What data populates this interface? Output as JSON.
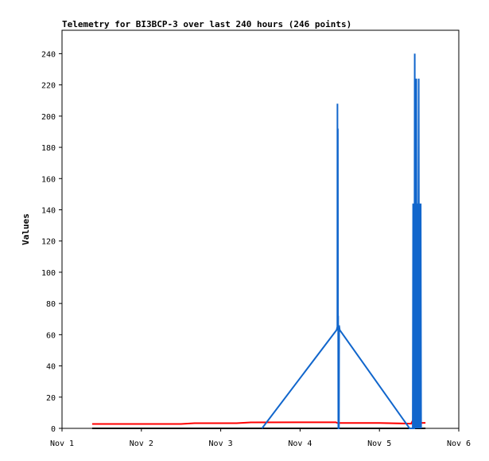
{
  "chart_data": {
    "type": "line",
    "title": "Telemetry for BI3BCP-3 over last 240 hours (246 points)",
    "xlabel": "",
    "ylabel": "Values",
    "x_ticks": [
      "Nov 1",
      "Nov 2",
      "Nov 3",
      "Nov 4",
      "Nov 5",
      "Nov 6"
    ],
    "x_range": [
      0,
      5
    ],
    "y_ticks": [
      0,
      20,
      40,
      60,
      80,
      100,
      120,
      140,
      160,
      180,
      200,
      220,
      240
    ],
    "ylim": [
      0,
      255
    ],
    "grid": false,
    "legend": "none",
    "series": [
      {
        "color": "#ff0000",
        "points": [
          [
            0.38,
            2.8
          ],
          [
            1.0,
            2.8
          ],
          [
            1.5,
            2.8
          ],
          [
            1.67,
            3.3
          ],
          [
            2.2,
            3.3
          ],
          [
            2.38,
            3.8
          ],
          [
            3.0,
            3.9
          ],
          [
            3.45,
            3.9
          ],
          [
            3.47,
            3.4
          ],
          [
            4.0,
            3.4
          ],
          [
            4.4,
            3.0
          ],
          [
            4.42,
            5.0
          ],
          [
            4.44,
            3.4
          ],
          [
            4.58,
            3.5
          ]
        ]
      },
      {
        "color": "#000000",
        "points": [
          [
            0.38,
            0
          ],
          [
            4.58,
            0
          ]
        ]
      },
      {
        "color": "#1166cc",
        "points": [
          [
            2.52,
            0
          ],
          [
            3.46,
            63
          ],
          [
            3.47,
            65
          ],
          [
            3.471,
            208
          ],
          [
            3.472,
            64
          ],
          [
            3.475,
            80
          ],
          [
            3.476,
            192
          ],
          [
            3.478,
            63
          ],
          [
            3.48,
            72
          ],
          [
            3.482,
            0
          ],
          [
            3.49,
            0
          ],
          [
            3.492,
            66
          ],
          [
            3.5,
            63
          ],
          [
            4.38,
            0
          ],
          [
            4.42,
            0
          ],
          [
            4.425,
            144
          ],
          [
            4.43,
            0
          ],
          [
            4.44,
            0
          ],
          [
            4.445,
            240
          ],
          [
            4.45,
            0
          ],
          [
            4.46,
            144
          ],
          [
            4.465,
            224
          ],
          [
            4.47,
            0
          ],
          [
            4.48,
            144
          ],
          [
            4.485,
            0
          ],
          [
            4.495,
            224
          ],
          [
            4.5,
            0
          ],
          [
            4.505,
            144
          ],
          [
            4.51,
            0
          ],
          [
            4.52,
            144
          ],
          [
            4.525,
            0
          ]
        ]
      }
    ]
  }
}
